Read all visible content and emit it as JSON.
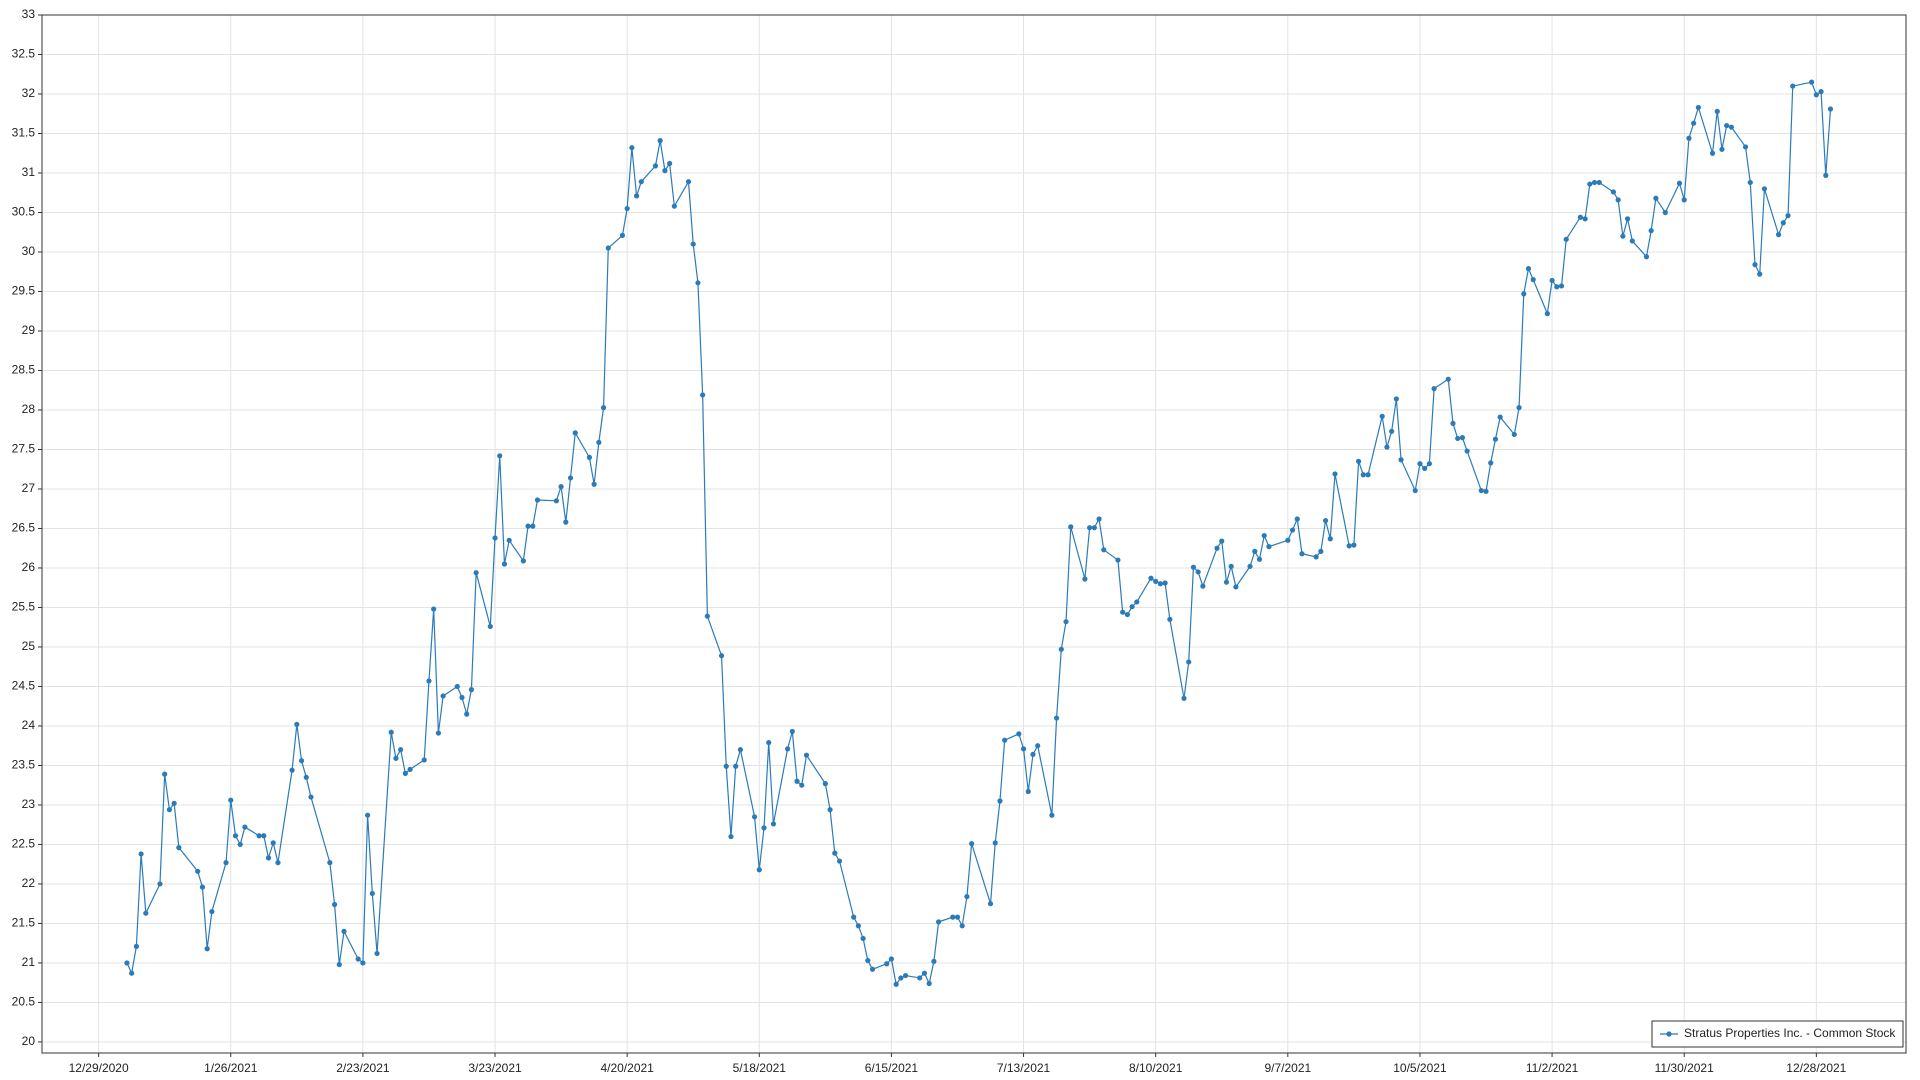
{
  "chart_data": {
    "type": "line",
    "xlim": [
      "2020-12-17",
      "2022-01-16"
    ],
    "ylim": [
      19.86,
      33
    ],
    "xticks": [
      {
        "value": "2020-12-29",
        "label": "12/29/2020"
      },
      {
        "value": "2021-01-26",
        "label": "1/26/2021"
      },
      {
        "value": "2021-02-23",
        "label": "2/23/2021"
      },
      {
        "value": "2021-03-23",
        "label": "3/23/2021"
      },
      {
        "value": "2021-04-20",
        "label": "4/20/2021"
      },
      {
        "value": "2021-05-18",
        "label": "5/18/2021"
      },
      {
        "value": "2021-06-15",
        "label": "6/15/2021"
      },
      {
        "value": "2021-07-13",
        "label": "7/13/2021"
      },
      {
        "value": "2021-08-10",
        "label": "8/10/2021"
      },
      {
        "value": "2021-09-07",
        "label": "9/7/2021"
      },
      {
        "value": "2021-10-05",
        "label": "10/5/2021"
      },
      {
        "value": "2021-11-02",
        "label": "11/2/2021"
      },
      {
        "value": "2021-11-30",
        "label": "11/30/2021"
      },
      {
        "value": "2021-12-28",
        "label": "12/28/2021"
      }
    ],
    "yticks": [
      20,
      20.5,
      21,
      21.5,
      22,
      22.5,
      23,
      23.5,
      24,
      24.5,
      25,
      25.5,
      26,
      26.5,
      27,
      27.5,
      28,
      28.5,
      29,
      29.5,
      30,
      30.5,
      31,
      31.5,
      32,
      32.5,
      33
    ],
    "grid": true,
    "legend": "lower right",
    "x": [
      "2021-01-04",
      "2021-01-05",
      "2021-01-06",
      "2021-01-07",
      "2021-01-08",
      "2021-01-11",
      "2021-01-12",
      "2021-01-13",
      "2021-01-14",
      "2021-01-15",
      "2021-01-19",
      "2021-01-20",
      "2021-01-21",
      "2021-01-22",
      "2021-01-25",
      "2021-01-26",
      "2021-01-27",
      "2021-01-28",
      "2021-01-29",
      "2021-02-01",
      "2021-02-02",
      "2021-02-03",
      "2021-02-04",
      "2021-02-05",
      "2021-02-08",
      "2021-02-09",
      "2021-02-10",
      "2021-02-11",
      "2021-02-12",
      "2021-02-16",
      "2021-02-17",
      "2021-02-18",
      "2021-02-19",
      "2021-02-22",
      "2021-02-23",
      "2021-02-24",
      "2021-02-25",
      "2021-02-26",
      "2021-03-01",
      "2021-03-02",
      "2021-03-03",
      "2021-03-04",
      "2021-03-05",
      "2021-03-08",
      "2021-03-09",
      "2021-03-10",
      "2021-03-11",
      "2021-03-12",
      "2021-03-15",
      "2021-03-16",
      "2021-03-17",
      "2021-03-18",
      "2021-03-19",
      "2021-03-22",
      "2021-03-23",
      "2021-03-24",
      "2021-03-25",
      "2021-03-26",
      "2021-03-29",
      "2021-03-30",
      "2021-03-31",
      "2021-04-01",
      "2021-04-05",
      "2021-04-06",
      "2021-04-07",
      "2021-04-08",
      "2021-04-09",
      "2021-04-12",
      "2021-04-13",
      "2021-04-14",
      "2021-04-15",
      "2021-04-16",
      "2021-04-19",
      "2021-04-20",
      "2021-04-21",
      "2021-04-22",
      "2021-04-23",
      "2021-04-26",
      "2021-04-27",
      "2021-04-28",
      "2021-04-29",
      "2021-04-30",
      "2021-05-03",
      "2021-05-04",
      "2021-05-05",
      "2021-05-06",
      "2021-05-07",
      "2021-05-10",
      "2021-05-11",
      "2021-05-12",
      "2021-05-13",
      "2021-05-14",
      "2021-05-17",
      "2021-05-18",
      "2021-05-19",
      "2021-05-20",
      "2021-05-21",
      "2021-05-24",
      "2021-05-25",
      "2021-05-26",
      "2021-05-27",
      "2021-05-28",
      "2021-06-01",
      "2021-06-02",
      "2021-06-03",
      "2021-06-04",
      "2021-06-07",
      "2021-06-08",
      "2021-06-09",
      "2021-06-10",
      "2021-06-11",
      "2021-06-14",
      "2021-06-15",
      "2021-06-16",
      "2021-06-17",
      "2021-06-18",
      "2021-06-21",
      "2021-06-22",
      "2021-06-23",
      "2021-06-24",
      "2021-06-25",
      "2021-06-28",
      "2021-06-29",
      "2021-06-30",
      "2021-07-01",
      "2021-07-02",
      "2021-07-06",
      "2021-07-07",
      "2021-07-08",
      "2021-07-09",
      "2021-07-12",
      "2021-07-13",
      "2021-07-14",
      "2021-07-15",
      "2021-07-16",
      "2021-07-19",
      "2021-07-20",
      "2021-07-21",
      "2021-07-22",
      "2021-07-23",
      "2021-07-26",
      "2021-07-27",
      "2021-07-28",
      "2021-07-29",
      "2021-07-30",
      "2021-08-02",
      "2021-08-03",
      "2021-08-04",
      "2021-08-05",
      "2021-08-06",
      "2021-08-09",
      "2021-08-10",
      "2021-08-11",
      "2021-08-12",
      "2021-08-13",
      "2021-08-16",
      "2021-08-17",
      "2021-08-18",
      "2021-08-19",
      "2021-08-20",
      "2021-08-23",
      "2021-08-24",
      "2021-08-25",
      "2021-08-26",
      "2021-08-27",
      "2021-08-30",
      "2021-08-31",
      "2021-09-01",
      "2021-09-02",
      "2021-09-03",
      "2021-09-07",
      "2021-09-08",
      "2021-09-09",
      "2021-09-10",
      "2021-09-13",
      "2021-09-14",
      "2021-09-15",
      "2021-09-16",
      "2021-09-17",
      "2021-09-20",
      "2021-09-21",
      "2021-09-22",
      "2021-09-23",
      "2021-09-24",
      "2021-09-27",
      "2021-09-28",
      "2021-09-29",
      "2021-09-30",
      "2021-10-01",
      "2021-10-04",
      "2021-10-05",
      "2021-10-06",
      "2021-10-07",
      "2021-10-08",
      "2021-10-11",
      "2021-10-12",
      "2021-10-13",
      "2021-10-14",
      "2021-10-15",
      "2021-10-18",
      "2021-10-19",
      "2021-10-20",
      "2021-10-21",
      "2021-10-22",
      "2021-10-25",
      "2021-10-26",
      "2021-10-27",
      "2021-10-28",
      "2021-10-29",
      "2021-11-01",
      "2021-11-02",
      "2021-11-03",
      "2021-11-04",
      "2021-11-05",
      "2021-11-08",
      "2021-11-09",
      "2021-11-10",
      "2021-11-11",
      "2021-11-12",
      "2021-11-15",
      "2021-11-16",
      "2021-11-17",
      "2021-11-18",
      "2021-11-19",
      "2021-11-22",
      "2021-11-23",
      "2021-11-24",
      "2021-11-26",
      "2021-11-29",
      "2021-11-30",
      "2021-12-01",
      "2021-12-02",
      "2021-12-03",
      "2021-12-06",
      "2021-12-07",
      "2021-12-08",
      "2021-12-09",
      "2021-12-10",
      "2021-12-13",
      "2021-12-14",
      "2021-12-15",
      "2021-12-16",
      "2021-12-17",
      "2021-12-20",
      "2021-12-21",
      "2021-12-22",
      "2021-12-23",
      "2021-12-27",
      "2021-12-28",
      "2021-12-29",
      "2021-12-30",
      "2021-12-31"
    ],
    "series": [
      {
        "name": "Stratus Properties Inc. - Common Stock",
        "color": "#2b7bb9",
        "values": [
          21.0,
          20.87,
          21.21,
          22.38,
          21.63,
          22.0,
          23.39,
          22.94,
          23.02,
          22.46,
          22.16,
          21.96,
          21.18,
          21.65,
          22.27,
          23.06,
          22.61,
          22.5,
          22.72,
          22.61,
          22.61,
          22.33,
          22.52,
          22.27,
          23.44,
          24.02,
          23.56,
          23.35,
          23.1,
          22.27,
          21.74,
          20.98,
          21.4,
          21.05,
          21.0,
          22.87,
          21.88,
          21.12,
          23.92,
          23.59,
          23.7,
          23.4,
          23.45,
          23.57,
          24.57,
          25.48,
          23.91,
          24.38,
          24.5,
          24.36,
          24.15,
          24.46,
          25.94,
          25.26,
          26.38,
          27.42,
          26.05,
          26.35,
          26.09,
          26.53,
          26.53,
          26.86,
          26.85,
          27.03,
          26.58,
          27.14,
          27.71,
          27.4,
          27.06,
          27.59,
          28.03,
          30.05,
          30.21,
          30.55,
          31.32,
          30.71,
          30.89,
          31.09,
          31.41,
          31.03,
          31.12,
          30.58,
          30.89,
          30.1,
          29.61,
          28.19,
          25.39,
          24.89,
          23.49,
          22.6,
          23.49,
          23.7,
          22.85,
          22.18,
          22.71,
          23.79,
          22.76,
          23.71,
          23.93,
          23.3,
          23.25,
          23.63,
          23.27,
          22.94,
          22.39,
          22.29,
          21.58,
          21.47,
          21.31,
          21.03,
          20.92,
          20.99,
          21.05,
          20.73,
          20.81,
          20.84,
          20.81,
          20.87,
          20.74,
          21.02,
          21.52,
          21.58,
          21.58,
          21.47,
          21.84,
          22.51,
          21.75,
          22.52,
          23.05,
          23.82,
          23.9,
          23.71,
          23.17,
          23.64,
          23.75,
          22.87,
          24.1,
          24.97,
          25.32,
          26.52,
          25.86,
          26.51,
          26.51,
          26.62,
          26.23,
          26.1,
          25.44,
          25.41,
          25.51,
          25.57,
          25.87,
          25.83,
          25.8,
          25.81,
          25.35,
          24.35,
          24.81,
          26.01,
          25.95,
          25.77,
          26.25,
          26.34,
          25.82,
          26.02,
          25.76,
          26.02,
          26.21,
          26.11,
          26.41,
          26.27,
          26.35,
          26.48,
          26.62,
          26.18,
          26.14,
          26.21,
          26.6,
          26.37,
          27.19,
          26.28,
          26.29,
          27.35,
          27.18,
          27.18,
          27.92,
          27.53,
          27.73,
          28.14,
          27.37,
          26.98,
          27.32,
          27.26,
          27.32,
          28.27,
          28.39,
          27.83,
          27.64,
          27.65,
          27.48,
          26.98,
          26.97,
          27.33,
          27.63,
          27.91,
          27.69,
          28.03,
          29.47,
          29.79,
          29.65,
          29.22,
          29.64,
          29.56,
          29.57,
          30.16,
          30.44,
          30.42,
          30.86,
          30.88,
          30.88,
          30.76,
          30.66,
          30.2,
          30.42,
          30.14,
          29.94,
          30.27,
          30.68,
          30.5,
          30.87,
          30.66,
          31.44,
          31.63,
          31.83,
          31.25,
          31.78,
          31.3,
          31.6,
          31.58,
          31.33,
          30.88,
          29.84,
          29.72,
          30.8,
          30.22,
          30.37,
          30.46,
          32.1,
          32.15,
          31.99,
          32.03,
          30.97,
          31.81
        ]
      }
    ]
  }
}
